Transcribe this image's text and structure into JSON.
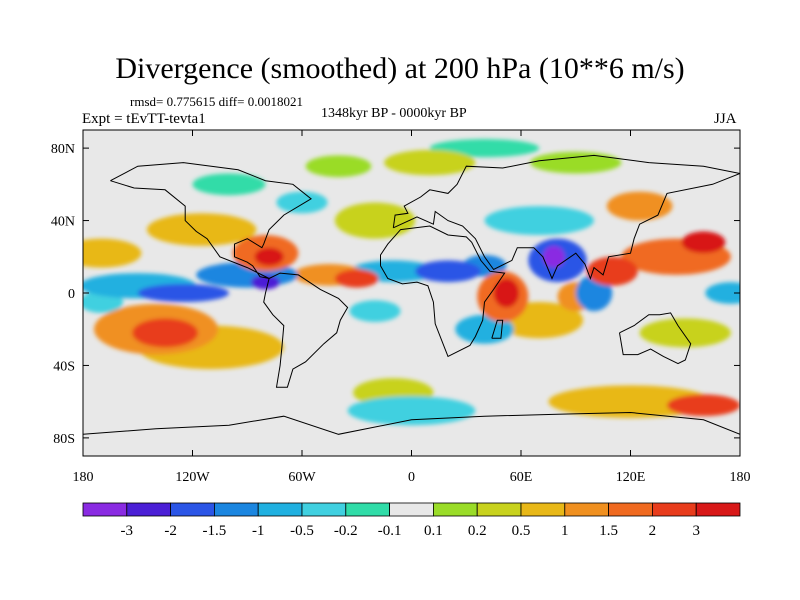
{
  "header": {
    "title": "Divergence (smoothed) at 200 hPa (10**6 m/s)",
    "stats": "rmsd= 0.775615 diff= 0.0018021",
    "period": "1348kyr BP - 0000kyr BP",
    "experiment": "Expt = tEvTT-tevta1",
    "season": "JJA"
  },
  "map": {
    "lat_ticks": [
      "80N",
      "40N",
      "0",
      "40S",
      "80S"
    ],
    "lon_ticks": [
      "180",
      "120W",
      "60W",
      "0",
      "60E",
      "120E",
      "180"
    ]
  },
  "colorbar": {
    "labels": [
      "-3",
      "-2",
      "-1.5",
      "-1",
      "-0.5",
      "-0.2",
      "-0.1",
      "0.1",
      "0.2",
      "0.5",
      "1",
      "1.5",
      "2",
      "3"
    ],
    "colors": [
      "#8a2be2",
      "#4b1fd6",
      "#2b55e6",
      "#1b86e0",
      "#20b0e0",
      "#40d0e0",
      "#30dca8",
      "#e8e8e8",
      "#9adc28",
      "#c8d21e",
      "#e8b818",
      "#f09020",
      "#f06a20",
      "#e83c1c",
      "#d81818"
    ]
  },
  "field": {
    "background": "#e8e8e8",
    "blobs": [
      {
        "lon": -140,
        "lat": -20,
        "rx": 34,
        "ry": 14,
        "level": 4
      },
      {
        "lon": -135,
        "lat": -22,
        "rx": 18,
        "ry": 8,
        "level": 6
      },
      {
        "lon": -110,
        "lat": -30,
        "rx": 40,
        "ry": 12,
        "level": 3
      },
      {
        "lon": -170,
        "lat": 22,
        "rx": 22,
        "ry": 8,
        "level": 3
      },
      {
        "lon": -115,
        "lat": 35,
        "rx": 30,
        "ry": 9,
        "level": 3
      },
      {
        "lon": -80,
        "lat": 22,
        "rx": 18,
        "ry": 10,
        "level": 5
      },
      {
        "lon": -78,
        "lat": 20,
        "rx": 8,
        "ry": 5,
        "level": 7
      },
      {
        "lon": -45,
        "lat": 10,
        "rx": 20,
        "ry": 6,
        "level": 4
      },
      {
        "lon": -30,
        "lat": 8,
        "rx": 12,
        "ry": 5,
        "level": 6
      },
      {
        "lon": -20,
        "lat": 40,
        "rx": 22,
        "ry": 10,
        "level": 2
      },
      {
        "lon": 50,
        "lat": -2,
        "rx": 14,
        "ry": 14,
        "level": 5
      },
      {
        "lon": 52,
        "lat": 0,
        "rx": 7,
        "ry": 8,
        "level": 7
      },
      {
        "lon": 70,
        "lat": -15,
        "rx": 24,
        "ry": 10,
        "level": 3
      },
      {
        "lon": 90,
        "lat": -2,
        "rx": 10,
        "ry": 8,
        "level": 4
      },
      {
        "lon": 110,
        "lat": 12,
        "rx": 14,
        "ry": 8,
        "level": 6
      },
      {
        "lon": 145,
        "lat": 20,
        "rx": 30,
        "ry": 10,
        "level": 5
      },
      {
        "lon": 160,
        "lat": 28,
        "rx": 12,
        "ry": 6,
        "level": 7
      },
      {
        "lon": 125,
        "lat": 48,
        "rx": 18,
        "ry": 8,
        "level": 4
      },
      {
        "lon": 150,
        "lat": -22,
        "rx": 25,
        "ry": 8,
        "level": 2
      },
      {
        "lon": 120,
        "lat": -60,
        "rx": 45,
        "ry": 9,
        "level": 3
      },
      {
        "lon": 160,
        "lat": -62,
        "rx": 20,
        "ry": 6,
        "level": 6
      },
      {
        "lon": -10,
        "lat": -55,
        "rx": 22,
        "ry": 8,
        "level": 2
      },
      {
        "lon": 10,
        "lat": 72,
        "rx": 25,
        "ry": 7,
        "level": 2
      },
      {
        "lon": 90,
        "lat": 72,
        "rx": 25,
        "ry": 6,
        "level": 1
      },
      {
        "lon": -150,
        "lat": 4,
        "rx": 32,
        "ry": 7,
        "level": -3
      },
      {
        "lon": -125,
        "lat": 0,
        "rx": 25,
        "ry": 5,
        "level": -5
      },
      {
        "lon": -90,
        "lat": 10,
        "rx": 28,
        "ry": 7,
        "level": -4
      },
      {
        "lon": -80,
        "lat": 6,
        "rx": 8,
        "ry": 4,
        "level": -6
      },
      {
        "lon": -10,
        "lat": 12,
        "rx": 24,
        "ry": 6,
        "level": -3
      },
      {
        "lon": 20,
        "lat": 12,
        "rx": 18,
        "ry": 6,
        "level": -5
      },
      {
        "lon": 40,
        "lat": 15,
        "rx": 12,
        "ry": 6,
        "level": -4
      },
      {
        "lon": 80,
        "lat": 18,
        "rx": 16,
        "ry": 12,
        "level": -5
      },
      {
        "lon": 78,
        "lat": 20,
        "rx": 6,
        "ry": 6,
        "level": -7
      },
      {
        "lon": 100,
        "lat": 0,
        "rx": 10,
        "ry": 10,
        "level": -4
      },
      {
        "lon": 40,
        "lat": -20,
        "rx": 16,
        "ry": 8,
        "level": -3
      },
      {
        "lon": 70,
        "lat": 40,
        "rx": 30,
        "ry": 8,
        "level": -2
      },
      {
        "lon": -20,
        "lat": -10,
        "rx": 14,
        "ry": 6,
        "level": -2
      },
      {
        "lon": 0,
        "lat": -65,
        "rx": 35,
        "ry": 8,
        "level": -2
      },
      {
        "lon": -170,
        "lat": -5,
        "rx": 12,
        "ry": 6,
        "level": -2
      },
      {
        "lon": 175,
        "lat": 0,
        "rx": 14,
        "ry": 6,
        "level": -3
      },
      {
        "lon": 40,
        "lat": 80,
        "rx": 30,
        "ry": 5,
        "level": -1
      },
      {
        "lon": -40,
        "lat": 70,
        "rx": 18,
        "ry": 6,
        "level": 1
      },
      {
        "lon": -100,
        "lat": 60,
        "rx": 20,
        "ry": 6,
        "level": -1
      },
      {
        "lon": -60,
        "lat": 50,
        "rx": 14,
        "ry": 6,
        "level": -2
      }
    ],
    "land_outlines": [
      [
        [
          -165,
          62
        ],
        [
          -150,
          70
        ],
        [
          -125,
          72
        ],
        [
          -95,
          68
        ],
        [
          -80,
          62
        ],
        [
          -65,
          60
        ],
        [
          -55,
          52
        ],
        [
          -70,
          43
        ],
        [
          -78,
          35
        ],
        [
          -81,
          27
        ],
        [
          -82,
          25
        ],
        [
          -90,
          30
        ],
        [
          -97,
          27
        ],
        [
          -97,
          20
        ],
        [
          -90,
          17
        ],
        [
          -87,
          15
        ],
        [
          -83,
          9
        ],
        [
          -78,
          8
        ],
        [
          -90,
          14
        ],
        [
          -105,
          20
        ],
        [
          -112,
          30
        ],
        [
          -118,
          34
        ],
        [
          -124,
          40
        ],
        [
          -124,
          48
        ],
        [
          -135,
          57
        ],
        [
          -152,
          58
        ],
        [
          -165,
          62
        ]
      ],
      [
        [
          -78,
          8
        ],
        [
          -72,
          11
        ],
        [
          -62,
          10
        ],
        [
          -50,
          2
        ],
        [
          -40,
          -3
        ],
        [
          -35,
          -8
        ],
        [
          -39,
          -15
        ],
        [
          -41,
          -22
        ],
        [
          -48,
          -28
        ],
        [
          -58,
          -38
        ],
        [
          -65,
          -42
        ],
        [
          -68,
          -52
        ],
        [
          -74,
          -52
        ],
        [
          -72,
          -40
        ],
        [
          -71,
          -30
        ],
        [
          -70,
          -18
        ],
        [
          -76,
          -12
        ],
        [
          -81,
          -5
        ],
        [
          -80,
          0
        ],
        [
          -78,
          8
        ]
      ],
      [
        [
          -17,
          15
        ],
        [
          -17,
          21
        ],
        [
          -13,
          27
        ],
        [
          -6,
          35
        ],
        [
          10,
          37
        ],
        [
          20,
          32
        ],
        [
          30,
          31
        ],
        [
          33,
          28
        ],
        [
          38,
          18
        ],
        [
          43,
          12
        ],
        [
          51,
          11
        ],
        [
          45,
          2
        ],
        [
          40,
          -5
        ],
        [
          39,
          -15
        ],
        [
          35,
          -24
        ],
        [
          32,
          -29
        ],
        [
          20,
          -35
        ],
        [
          18,
          -30
        ],
        [
          13,
          -17
        ],
        [
          12,
          -5
        ],
        [
          9,
          4
        ],
        [
          3,
          6
        ],
        [
          -5,
          5
        ],
        [
          -13,
          8
        ],
        [
          -17,
          15
        ]
      ],
      [
        [
          -10,
          36
        ],
        [
          -9,
          43
        ],
        [
          -2,
          44
        ],
        [
          -4,
          48
        ],
        [
          5,
          53
        ],
        [
          10,
          57
        ],
        [
          20,
          55
        ],
        [
          25,
          60
        ],
        [
          30,
          70
        ],
        [
          50,
          69
        ],
        [
          70,
          73
        ],
        [
          100,
          76
        ],
        [
          130,
          72
        ],
        [
          160,
          70
        ],
        [
          180,
          66
        ],
        [
          165,
          60
        ],
        [
          140,
          55
        ],
        [
          135,
          43
        ],
        [
          125,
          38
        ],
        [
          122,
          30
        ],
        [
          120,
          22
        ],
        [
          108,
          20
        ],
        [
          105,
          10
        ],
        [
          100,
          14
        ],
        [
          98,
          8
        ],
        [
          95,
          16
        ],
        [
          90,
          22
        ],
        [
          80,
          15
        ],
        [
          77,
          8
        ],
        [
          72,
          20
        ],
        [
          67,
          25
        ],
        [
          58,
          25
        ],
        [
          55,
          18
        ],
        [
          45,
          13
        ],
        [
          40,
          20
        ],
        [
          35,
          30
        ],
        [
          28,
          37
        ],
        [
          20,
          40
        ],
        [
          13,
          45
        ],
        [
          12,
          38
        ],
        [
          3,
          42
        ],
        [
          -10,
          36
        ]
      ],
      [
        [
          114,
          -22
        ],
        [
          116,
          -34
        ],
        [
          124,
          -34
        ],
        [
          131,
          -31
        ],
        [
          138,
          -35
        ],
        [
          146,
          -39
        ],
        [
          150,
          -37
        ],
        [
          153,
          -28
        ],
        [
          146,
          -18
        ],
        [
          142,
          -11
        ],
        [
          136,
          -12
        ],
        [
          130,
          -12
        ],
        [
          122,
          -18
        ],
        [
          114,
          -22
        ]
      ],
      [
        [
          44,
          -25
        ],
        [
          47,
          -15
        ],
        [
          50,
          -15
        ],
        [
          49,
          -25
        ],
        [
          44,
          -25
        ]
      ],
      [
        [
          -180,
          -78
        ],
        [
          -140,
          -75
        ],
        [
          -100,
          -73
        ],
        [
          -70,
          -68
        ],
        [
          -40,
          -78
        ],
        [
          0,
          -70
        ],
        [
          40,
          -68
        ],
        [
          80,
          -67
        ],
        [
          120,
          -66
        ],
        [
          160,
          -70
        ],
        [
          180,
          -78
        ]
      ]
    ]
  }
}
